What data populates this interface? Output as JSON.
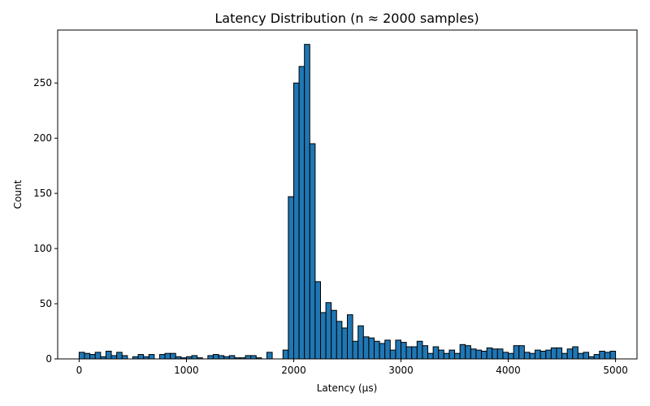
{
  "chart_data": {
    "type": "bar",
    "title": "Latency Distribution (n ≈ 2000 samples)",
    "xlabel": "Latency (µs)",
    "ylabel": "Count",
    "xlim": [
      -200,
      5200
    ],
    "ylim": [
      0,
      298
    ],
    "xticks": [
      0,
      1000,
      2000,
      3000,
      4000,
      5000
    ],
    "yticks": [
      0,
      50,
      100,
      150,
      200,
      250
    ],
    "grid": false,
    "legend": "none",
    "bar_color": "#1f77b4",
    "edge_color": "#000000",
    "bin_width": 50,
    "bin_starts": [
      0,
      50,
      100,
      150,
      200,
      250,
      300,
      350,
      400,
      450,
      500,
      550,
      600,
      650,
      700,
      750,
      800,
      850,
      900,
      950,
      1000,
      1050,
      1100,
      1150,
      1200,
      1250,
      1300,
      1350,
      1400,
      1450,
      1500,
      1550,
      1600,
      1650,
      1700,
      1750,
      1800,
      1850,
      1900,
      1950,
      2000,
      2050,
      2100,
      2150,
      2200,
      2250,
      2300,
      2350,
      2400,
      2450,
      2500,
      2550,
      2600,
      2650,
      2700,
      2750,
      2800,
      2850,
      2900,
      2950,
      3000,
      3050,
      3100,
      3150,
      3200,
      3250,
      3300,
      3350,
      3400,
      3450,
      3500,
      3550,
      3600,
      3650,
      3700,
      3750,
      3800,
      3850,
      3900,
      3950,
      4000,
      4050,
      4100,
      4150,
      4200,
      4250,
      4300,
      4350,
      4400,
      4450,
      4500,
      4550,
      4600,
      4650,
      4700,
      4750,
      4800,
      4850,
      4900,
      4950
    ],
    "values": [
      6,
      5,
      4,
      6,
      2,
      7,
      3,
      6,
      3,
      0,
      2,
      4,
      2,
      4,
      0,
      4,
      5,
      5,
      2,
      1,
      2,
      3,
      1,
      0,
      3,
      4,
      3,
      2,
      3,
      1,
      1,
      3,
      3,
      1,
      0,
      6,
      0,
      0,
      8,
      147,
      250,
      265,
      285,
      195,
      70,
      42,
      51,
      44,
      34,
      28,
      40,
      16,
      30,
      20,
      19,
      16,
      14,
      17,
      8,
      17,
      15,
      11,
      11,
      16,
      12,
      5,
      11,
      8,
      5,
      8,
      5,
      13,
      12,
      9,
      8,
      7,
      10,
      9,
      9,
      6,
      5,
      12,
      12,
      6,
      5,
      8,
      7,
      8,
      10,
      10,
      5,
      9,
      11,
      5,
      6,
      2,
      4,
      7,
      6,
      7
    ]
  }
}
